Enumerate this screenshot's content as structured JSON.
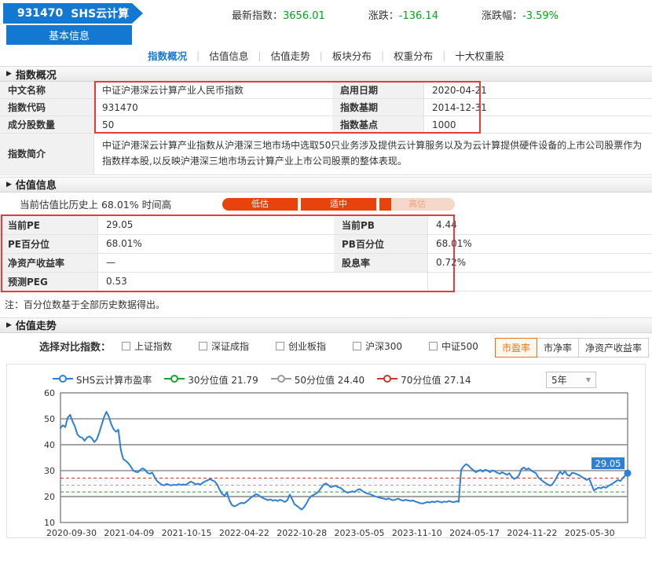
{
  "header": {
    "index_code": "931470",
    "index_name": "SHS云计算",
    "basic_info_label": "基本信息",
    "stats": [
      {
        "label": "最新指数：",
        "value": "3656.01"
      },
      {
        "label": "涨跌：",
        "value": "-136.14"
      },
      {
        "label": "涨跌幅：",
        "value": "-3.59%"
      }
    ]
  },
  "nav_tabs": [
    {
      "label": "指数概况",
      "active": true
    },
    {
      "label": "估值信息",
      "active": false
    },
    {
      "label": "估值走势",
      "active": false
    },
    {
      "label": "板块分布",
      "active": false
    },
    {
      "label": "权重分布",
      "active": false
    },
    {
      "label": "十大权重股",
      "active": false
    }
  ],
  "overview": {
    "section_title": "指数概况",
    "rows": [
      {
        "l1": "中文名称",
        "v1": "中证沪港深云计算产业人民币指数",
        "l2": "启用日期",
        "v2": "2020-04-21"
      },
      {
        "l1": "指数代码",
        "v1": "931470",
        "l2": "指数基期",
        "v2": "2014-12-31"
      },
      {
        "l1": "成分股数量",
        "v1": "50",
        "l2": "指数基点",
        "v2": "1000"
      }
    ],
    "brief_label": "指数简介",
    "brief_text": "中证沪港深云计算产业指数从沪港深三地市场中选取50只业务涉及提供云计算服务以及为云计算提供硬件设备的上市公司股票作为指数样本股,以反映沪港深三地市场云计算产业上市公司股票的整体表现。"
  },
  "valuation": {
    "section_title": "估值信息",
    "history_note": "当前估值比历史上 68.01% 时间高",
    "gauge": [
      {
        "label": "低估",
        "fill_pct": 100
      },
      {
        "label": "适中",
        "fill_pct": 100
      },
      {
        "label": "高估",
        "fill_pct": 16
      }
    ],
    "gauge_colors": {
      "fill": "#e8430d",
      "track": "#f5d8c9"
    },
    "rows": [
      {
        "l1": "当前PE",
        "v1": "29.05",
        "l2": "当前PB",
        "v2": "4.44"
      },
      {
        "l1": "PE百分位",
        "v1": "68.01%",
        "l2": "PB百分位",
        "v2": "68.01%"
      },
      {
        "l1": "净资产收益率",
        "v1": "—",
        "l2": "股息率",
        "v2": "0.72%"
      },
      {
        "l1": "预测PEG",
        "v1": "0.53",
        "l2": "",
        "v2": ""
      }
    ],
    "footnote": "注：百分位数基于全部历史数据得出。"
  },
  "trend": {
    "section_title": "估值走势",
    "compare_label": "选择对比指数：",
    "compare_options": [
      "上证指数",
      "深证成指",
      "创业板指",
      "沪深300",
      "中证500"
    ],
    "metric_tabs": [
      {
        "label": "市盈率",
        "active": true
      },
      {
        "label": "市净率",
        "active": false
      },
      {
        "label": "净资产收益率",
        "active": false
      }
    ],
    "range_select": "5年"
  },
  "chart_data": {
    "type": "line",
    "title": "SHS云计算市盈率走势",
    "legend": [
      {
        "name": "SHS云计算市盈率",
        "color": "#2e7fd8"
      },
      {
        "name": "30分位值 21.79",
        "color": "#1fa12e"
      },
      {
        "name": "50分位值 24.40",
        "color": "#9a9a9a"
      },
      {
        "name": "70分位值 27.14",
        "color": "#c83a28"
      }
    ],
    "reference_lines": [
      {
        "value": 21.79,
        "color": "#1fa12e"
      },
      {
        "value": 24.4,
        "color": "#a8a8a8"
      },
      {
        "value": 27.14,
        "color": "#c83a28"
      }
    ],
    "series_color": "#2e7fd8",
    "ylim": [
      10,
      60
    ],
    "y_ticks": [
      60,
      50,
      40,
      30,
      20,
      10
    ],
    "x_ticks": [
      "2020-09-30",
      "2021-04-09",
      "2021-10-15",
      "2022-04-22",
      "2022-10-28",
      "2023-05-05",
      "2023-11-10",
      "2024-05-17",
      "2024-11-22",
      "2025-05-30"
    ],
    "last_value_label": "29.05",
    "series_values": [
      46.5,
      47.5,
      46.8,
      50.5,
      51.5,
      49.0,
      47.0,
      44.0,
      43.0,
      42.7,
      41.5,
      42.8,
      43.2,
      42.5,
      41.0,
      42.0,
      44.5,
      47.5,
      50.5,
      52.7,
      51.0,
      48.0,
      46.0,
      45.0,
      45.8,
      38.0,
      34.5,
      33.8,
      33.0,
      31.8,
      30.2,
      29.6,
      29.4,
      30.2,
      30.9,
      30.4,
      29.2,
      28.8,
      29.3,
      27.5,
      26.0,
      25.2,
      24.6,
      24.3,
      24.9,
      24.5,
      24.3,
      24.6,
      24.4,
      24.8,
      24.5,
      24.7,
      24.5,
      25.2,
      25.8,
      25.3,
      24.7,
      25.0,
      24.6,
      25.4,
      25.9,
      26.3,
      26.8,
      26.2,
      25.8,
      24.5,
      22.5,
      21.0,
      20.4,
      21.5,
      18.5,
      16.8,
      16.2,
      16.6,
      17.2,
      17.6,
      17.4,
      18.0,
      18.8,
      19.6,
      20.3,
      20.9,
      20.6,
      19.9,
      19.4,
      19.0,
      18.6,
      18.9,
      18.4,
      18.7,
      18.3,
      18.8,
      18.4,
      17.9,
      18.6,
      20.8,
      19.0,
      17.0,
      16.4,
      15.6,
      15.0,
      16.0,
      17.5,
      19.3,
      20.2,
      20.7,
      21.2,
      22.0,
      23.3,
      24.6,
      25.1,
      24.4,
      23.6,
      23.9,
      24.2,
      23.6,
      23.4,
      22.6,
      21.9,
      21.5,
      21.8,
      22.0,
      21.8,
      22.6,
      22.9,
      22.2,
      21.6,
      21.2,
      21.0,
      20.6,
      20.2,
      19.9,
      19.6,
      19.4,
      19.2,
      18.9,
      19.3,
      18.8,
      18.6,
      18.9,
      19.2,
      18.7,
      18.4,
      18.8,
      18.5,
      18.3,
      18.5,
      18.1,
      17.8,
      17.5,
      17.3,
      17.6,
      17.9,
      17.7,
      18.1,
      17.8,
      18.2,
      18.0,
      17.7,
      18.1,
      17.9,
      18.3,
      18.0,
      17.8,
      18.2,
      18.0,
      30.2,
      31.6,
      32.5,
      32.0,
      31.0,
      30.2,
      29.4,
      29.8,
      30.3,
      29.6,
      30.4,
      30.0,
      29.4,
      30.1,
      29.7,
      29.2,
      28.8,
      29.4,
      28.9,
      28.4,
      29.0,
      27.6,
      26.8,
      27.3,
      28.2,
      30.6,
      31.2,
      30.4,
      30.9,
      30.1,
      29.5,
      29.0,
      27.4,
      26.6,
      25.8,
      25.2,
      24.6,
      24.2,
      25.0,
      26.4,
      28.2,
      29.6,
      28.6,
      29.8,
      28.4,
      28.0,
      29.2,
      29.0,
      28.6,
      28.2,
      27.6,
      27.0,
      26.4,
      27.0,
      24.8,
      22.4,
      23.0,
      23.5,
      23.2,
      23.8,
      23.4,
      24.1,
      24.6,
      25.2,
      25.8,
      26.4,
      26.0,
      27.2,
      28.1,
      29.05
    ]
  }
}
